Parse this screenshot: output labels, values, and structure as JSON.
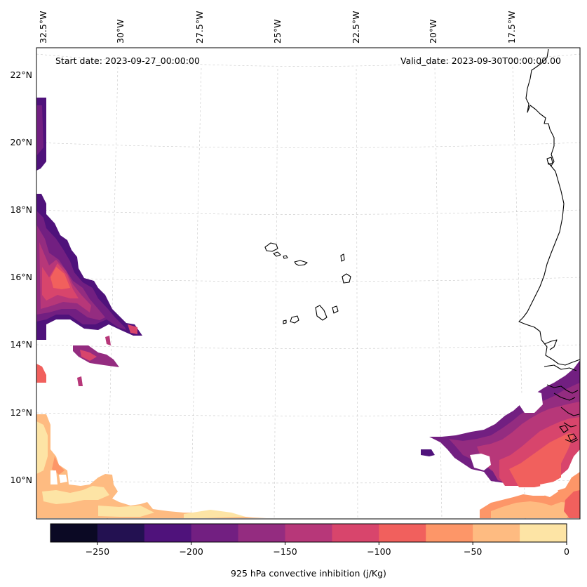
{
  "map": {
    "start_date": "Start date: 2023-09-27_00:00:00",
    "valid_date": "Valid_date: 2023-09-30T00:00:00.00",
    "lon_labels": [
      "32.5°W",
      "30°W",
      "27.5°W",
      "25°W",
      "22.5°W",
      "20°W",
      "17.5°W"
    ],
    "lat_labels": [
      "22°N",
      "20°N",
      "18°N",
      "16°N",
      "14°N",
      "12°N",
      "10°N"
    ]
  },
  "colorbar": {
    "label": "925 hPa convective inhibition (j/Kg)",
    "tick_labels": [
      "−250",
      "−200",
      "−150",
      "−100",
      "−50",
      "0"
    ],
    "levels": [
      -275,
      -250,
      -225,
      -200,
      -175,
      -150,
      -125,
      -100,
      -75,
      -50,
      -25,
      0
    ],
    "colors": [
      "#0b0924",
      "#231151",
      "#4f127b",
      "#721f81",
      "#942c80",
      "#b73779",
      "#d8456c",
      "#f1605d",
      "#fd9668",
      "#febb81",
      "#fde4a5"
    ]
  },
  "layers": {
    "colors": {
      "c1": "#4f127b",
      "c2": "#721f81",
      "c3": "#942c80",
      "c4": "#b73779",
      "c5": "#d8456c",
      "c6": "#f1605d",
      "c7": "#fd9668",
      "c8": "#febb81",
      "c9": "#fde4a5"
    }
  }
}
